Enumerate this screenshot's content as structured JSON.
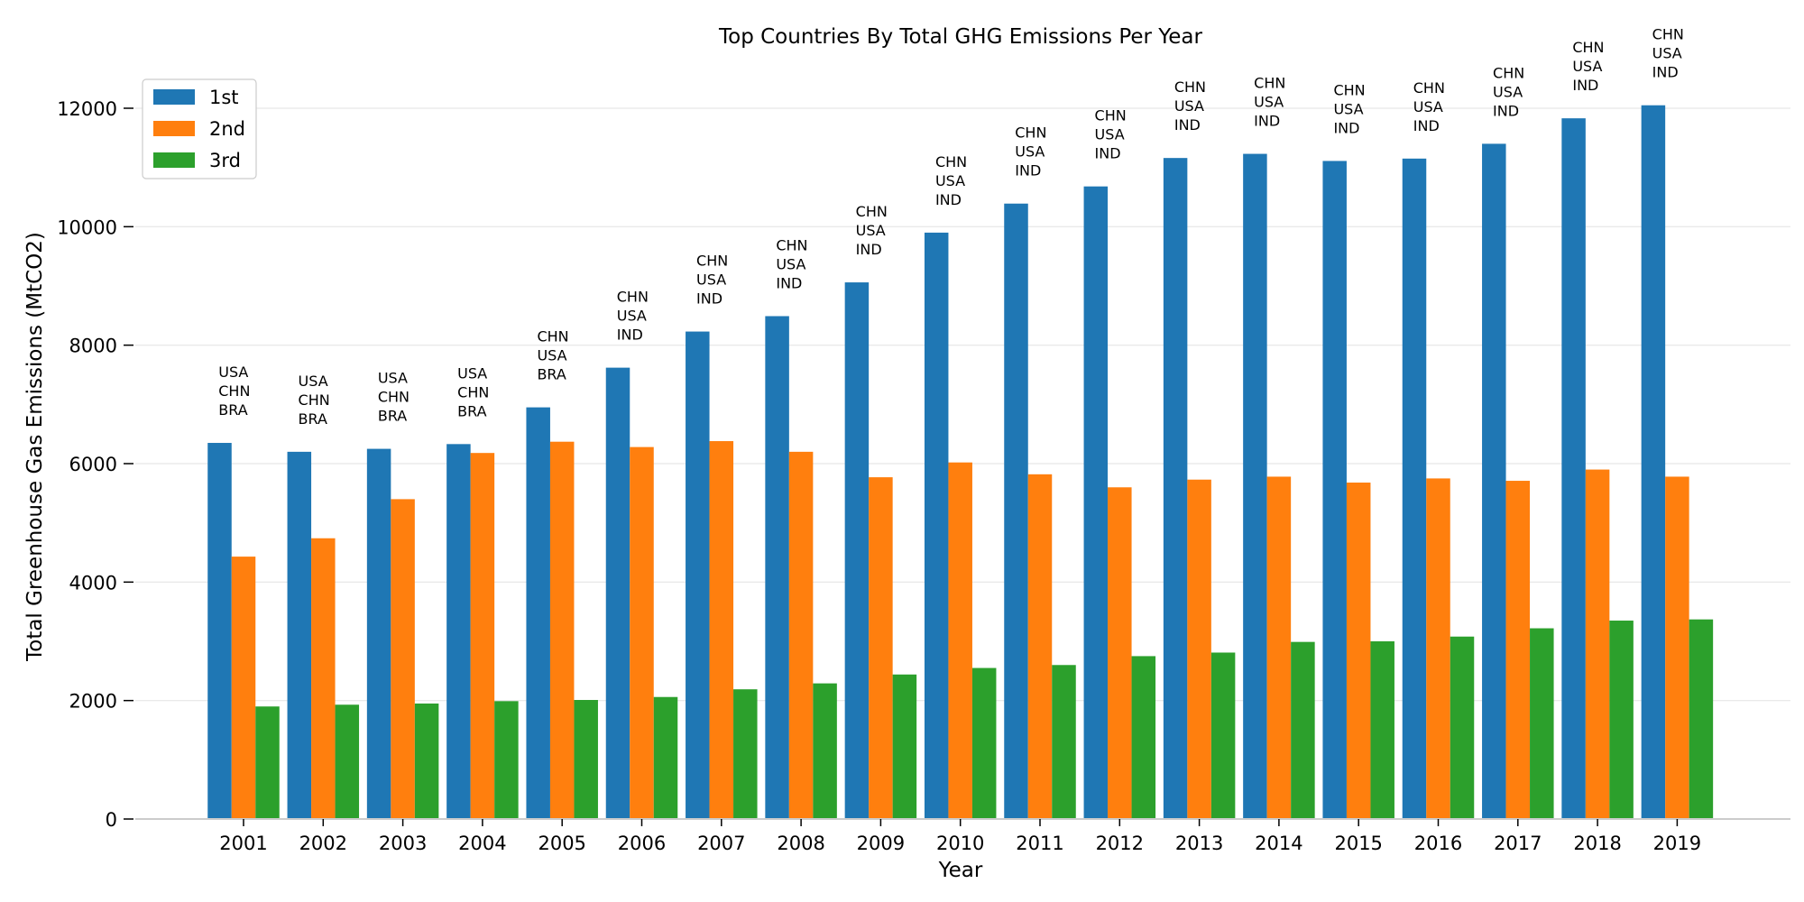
{
  "chart_data": {
    "type": "bar",
    "title": "Top Countries By Total GHG Emissions Per Year",
    "xlabel": "Year",
    "ylabel": "Total Greenhouse Gas Emissions (MtCO2)",
    "ylim": [
      0,
      13000
    ],
    "yticks": [
      0,
      2000,
      4000,
      6000,
      8000,
      10000,
      12000
    ],
    "grid": "y",
    "legend_position": "top-left",
    "categories": [
      "2001",
      "2002",
      "2003",
      "2004",
      "2005",
      "2006",
      "2007",
      "2008",
      "2009",
      "2010",
      "2011",
      "2012",
      "2013",
      "2014",
      "2015",
      "2016",
      "2017",
      "2018",
      "2019"
    ],
    "series": [
      {
        "name": "1st",
        "color": "#1f77b4",
        "values": [
          6350,
          6200,
          6250,
          6330,
          6950,
          7620,
          8230,
          8490,
          9060,
          9900,
          10390,
          10680,
          11160,
          11230,
          11110,
          11150,
          11400,
          11830,
          12050
        ]
      },
      {
        "name": "2nd",
        "color": "#ff7f0e",
        "values": [
          4430,
          4740,
          5400,
          6180,
          6370,
          6280,
          6380,
          6200,
          5770,
          6020,
          5820,
          5600,
          5730,
          5780,
          5680,
          5750,
          5710,
          5900,
          5780
        ]
      },
      {
        "name": "3rd",
        "color": "#2ca02c",
        "values": [
          1900,
          1930,
          1950,
          1990,
          2010,
          2060,
          2190,
          2290,
          2440,
          2550,
          2600,
          2750,
          2810,
          2990,
          3000,
          3080,
          3220,
          3350,
          3370
        ]
      }
    ],
    "annotations": [
      [
        "USA",
        "CHN",
        "BRA"
      ],
      [
        "USA",
        "CHN",
        "BRA"
      ],
      [
        "USA",
        "CHN",
        "BRA"
      ],
      [
        "USA",
        "CHN",
        "BRA"
      ],
      [
        "CHN",
        "USA",
        "BRA"
      ],
      [
        "CHN",
        "USA",
        "IND"
      ],
      [
        "CHN",
        "USA",
        "IND"
      ],
      [
        "CHN",
        "USA",
        "IND"
      ],
      [
        "CHN",
        "USA",
        "IND"
      ],
      [
        "CHN",
        "USA",
        "IND"
      ],
      [
        "CHN",
        "USA",
        "IND"
      ],
      [
        "CHN",
        "USA",
        "IND"
      ],
      [
        "CHN",
        "USA",
        "IND"
      ],
      [
        "CHN",
        "USA",
        "IND"
      ],
      [
        "CHN",
        "USA",
        "IND"
      ],
      [
        "CHN",
        "USA",
        "IND"
      ],
      [
        "CHN",
        "USA",
        "IND"
      ],
      [
        "CHN",
        "USA",
        "IND"
      ],
      [
        "CHN",
        "USA",
        "IND"
      ]
    ]
  }
}
